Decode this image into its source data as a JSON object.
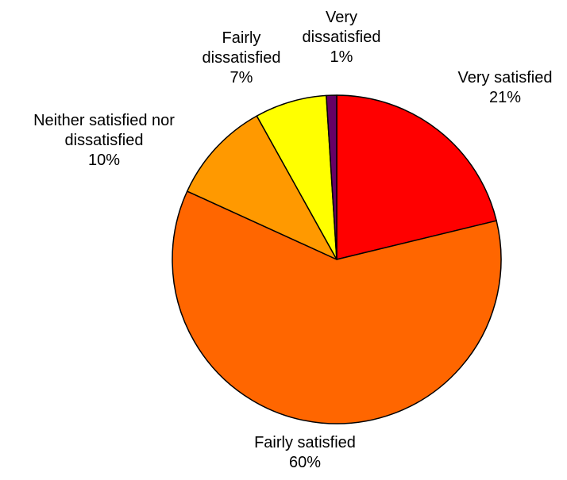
{
  "chart_data": {
    "type": "pie",
    "start_angle_deg": 0,
    "direction": "clockwise",
    "slices": [
      {
        "label_lines": [
          "Very satisfied"
        ],
        "value": 21,
        "value_label": "21%",
        "color": "#FF0000"
      },
      {
        "label_lines": [
          "Fairly satisfied"
        ],
        "value": 60,
        "value_label": "60%",
        "color": "#FF6600"
      },
      {
        "label_lines": [
          "Neither satisfied nor",
          "dissatisfied"
        ],
        "value": 10,
        "value_label": "10%",
        "color": "#FF9900"
      },
      {
        "label_lines": [
          "Fairly",
          "dissatisfied"
        ],
        "value": 7,
        "value_label": "7%",
        "color": "#FFFF00"
      },
      {
        "label_lines": [
          "Very",
          "dissatisfied"
        ],
        "value": 1,
        "value_label": "1%",
        "color": "#660066"
      }
    ],
    "outline_color": "#000000",
    "legend": "none"
  }
}
